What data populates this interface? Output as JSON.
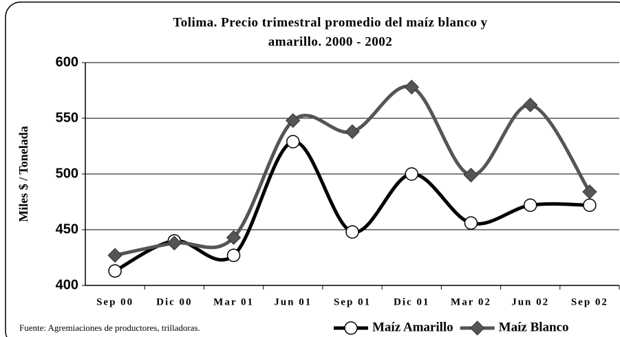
{
  "chart_data": {
    "type": "line",
    "title": [
      "Tolima. Precio trimestral promedio del maíz blanco y",
      "amarillo. 2000 - 2002"
    ],
    "y_label": "Miles $ / Tonelada",
    "source": "Fuente: Agremiaciones de productores, trilladoras.",
    "categories": [
      "Sep 00",
      "Dic 00",
      "Mar 01",
      "Jun 01",
      "Sep 01",
      "Dic 01",
      "Mar 02",
      "Jun 02",
      "Sep 02"
    ],
    "series": [
      {
        "name": "Maíz Amarillo",
        "color": "#000000",
        "marker": "circle",
        "values": [
          413,
          440,
          427,
          529,
          448,
          500,
          456,
          472,
          472
        ]
      },
      {
        "name": "Maíz Blanco",
        "color": "#555555",
        "marker": "diamond",
        "values": [
          427,
          438,
          443,
          548,
          538,
          578,
          499,
          562,
          484
        ]
      }
    ],
    "ylim": [
      400,
      600
    ],
    "yticks": [
      400,
      450,
      500,
      550,
      600
    ],
    "grid": true,
    "smooth": true,
    "legend": "bottom"
  }
}
